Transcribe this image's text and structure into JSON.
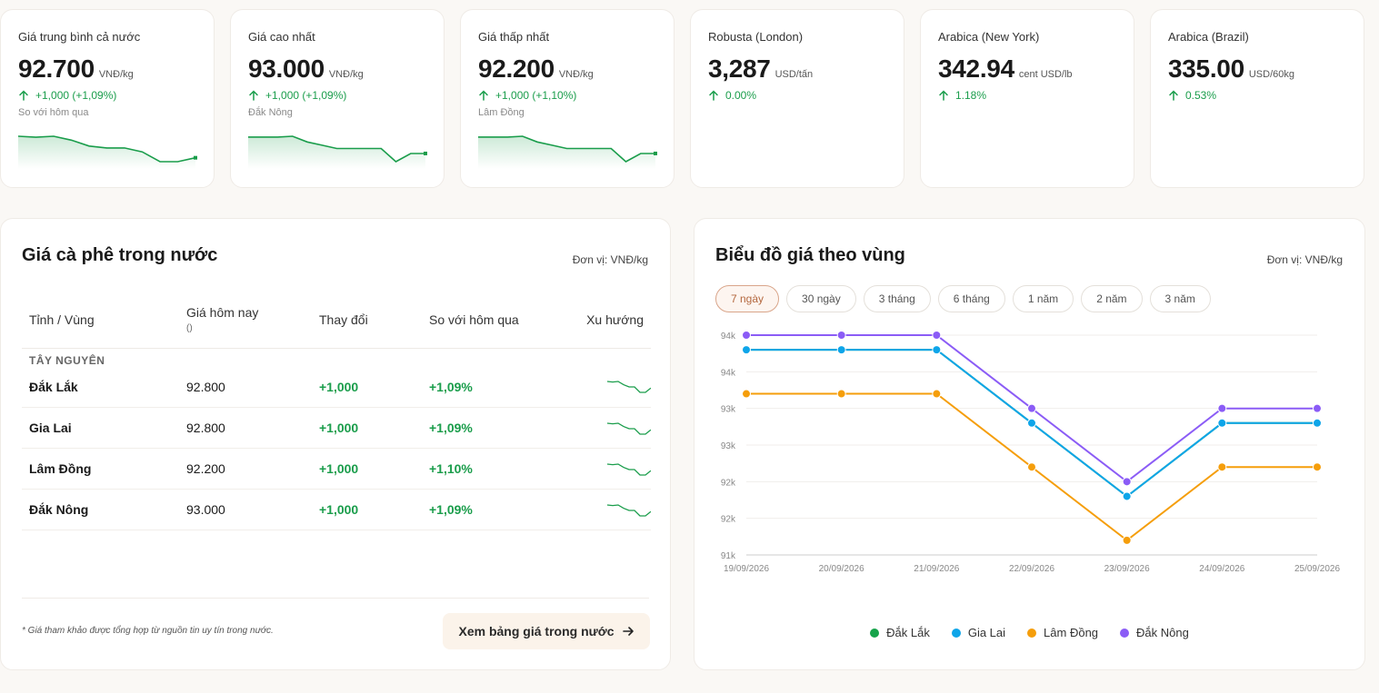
{
  "stats": [
    {
      "label": "Giá trung bình cả nước",
      "value": "92.700",
      "unit": "VNĐ/kg",
      "change": "+1,000 (+1,09%)",
      "sub": "So với hôm qua",
      "spark": [
        92.8,
        92.75,
        92.8,
        92.6,
        92.3,
        92.2,
        92.2,
        92.0,
        91.5,
        91.5,
        91.7
      ]
    },
    {
      "label": "Giá cao nhất",
      "value": "93.000",
      "unit": "VNĐ/kg",
      "change": "+1,000 (+1,09%)",
      "sub": "Đắk Nông",
      "spark": [
        93.0,
        93.0,
        93.0,
        93.05,
        92.7,
        92.5,
        92.3,
        92.3,
        92.3,
        92.3,
        91.5,
        92.0,
        92.0
      ]
    },
    {
      "label": "Giá thấp nhất",
      "value": "92.200",
      "unit": "VNĐ/kg",
      "change": "+1,000 (+1,10%)",
      "sub": "Lâm Đồng",
      "spark": [
        93.0,
        93.0,
        93.0,
        93.05,
        92.7,
        92.5,
        92.3,
        92.3,
        92.3,
        92.3,
        91.5,
        92.0,
        92.0
      ]
    },
    {
      "label": "Robusta (London)",
      "value": "3,287",
      "unit": "USD/tấn",
      "change": "0.00%",
      "sub": "",
      "spark": []
    },
    {
      "label": "Arabica (New York)",
      "value": "342.94",
      "unit": "cent USD/lb",
      "change": "1.18%",
      "sub": "",
      "spark": []
    },
    {
      "label": "Arabica (Brazil)",
      "value": "335.00",
      "unit": "USD/60kg",
      "change": "0.53%",
      "sub": "",
      "spark": []
    }
  ],
  "domestic": {
    "title": "Giá cà phê trong nước",
    "unit": "Đơn vị: VNĐ/kg",
    "headers": {
      "region": "Tỉnh / Vùng",
      "today": "Giá hôm nay",
      "today_sub": "()",
      "change": "Thay đổi",
      "vs": "So với hôm qua",
      "trend": "Xu hướng"
    },
    "group": "TÂY NGUYÊN",
    "rows": [
      {
        "name": "Đắk Lắk",
        "price": "92.800",
        "change": "+1,000",
        "pct": "+1,09%"
      },
      {
        "name": "Gia Lai",
        "price": "92.800",
        "change": "+1,000",
        "pct": "+1,09%"
      },
      {
        "name": "Lâm Đồng",
        "price": "92.200",
        "change": "+1,000",
        "pct": "+1,10%"
      },
      {
        "name": "Đắk Nông",
        "price": "93.000",
        "change": "+1,000",
        "pct": "+1,09%"
      }
    ],
    "row_trend": [
      93.0,
      92.95,
      93.0,
      92.7,
      92.5,
      92.5,
      92.0,
      92.0,
      92.4
    ],
    "note": "* Giá tham khảo được tổng hợp từ nguồn tin uy tín trong nước.",
    "button": "Xem bảng giá trong nước",
    "button_icon": "arrow-right-icon"
  },
  "regional": {
    "title": "Biểu đồ giá theo vùng",
    "unit": "Đơn vị: VNĐ/kg",
    "tabs": [
      "7 ngày",
      "30 ngày",
      "3 tháng",
      "6 tháng",
      "1 năm",
      "2 năm",
      "3 năm"
    ],
    "active_tab": 0
  },
  "chart_data": {
    "type": "line",
    "x": [
      "19/09/2026",
      "20/09/2026",
      "21/09/2026",
      "22/09/2026",
      "23/09/2026",
      "24/09/2026",
      "25/09/2026"
    ],
    "y_ticks": [
      "91k",
      "92k",
      "92k",
      "93k",
      "93k",
      "94k",
      "94k"
    ],
    "ylim": [
      91000,
      94000
    ],
    "grid": true,
    "legend_position": "bottom",
    "series": [
      {
        "name": "Đắk Lắk",
        "color": "#16a34a",
        "values": [
          93800,
          93800,
          93800,
          92800,
          91800,
          92800,
          92800
        ]
      },
      {
        "name": "Gia Lai",
        "color": "#0ea5e9",
        "values": [
          93800,
          93800,
          93800,
          92800,
          91800,
          92800,
          92800
        ]
      },
      {
        "name": "Lâm Đồng",
        "color": "#f59e0b",
        "values": [
          93200,
          93200,
          93200,
          92200,
          91200,
          92200,
          92200
        ]
      },
      {
        "name": "Đắk Nông",
        "color": "#8b5cf6",
        "values": [
          94000,
          94000,
          94000,
          93000,
          92000,
          93000,
          93000
        ]
      }
    ]
  },
  "colors": {
    "up": "#1a9d4b",
    "accent": "#b4683f"
  }
}
